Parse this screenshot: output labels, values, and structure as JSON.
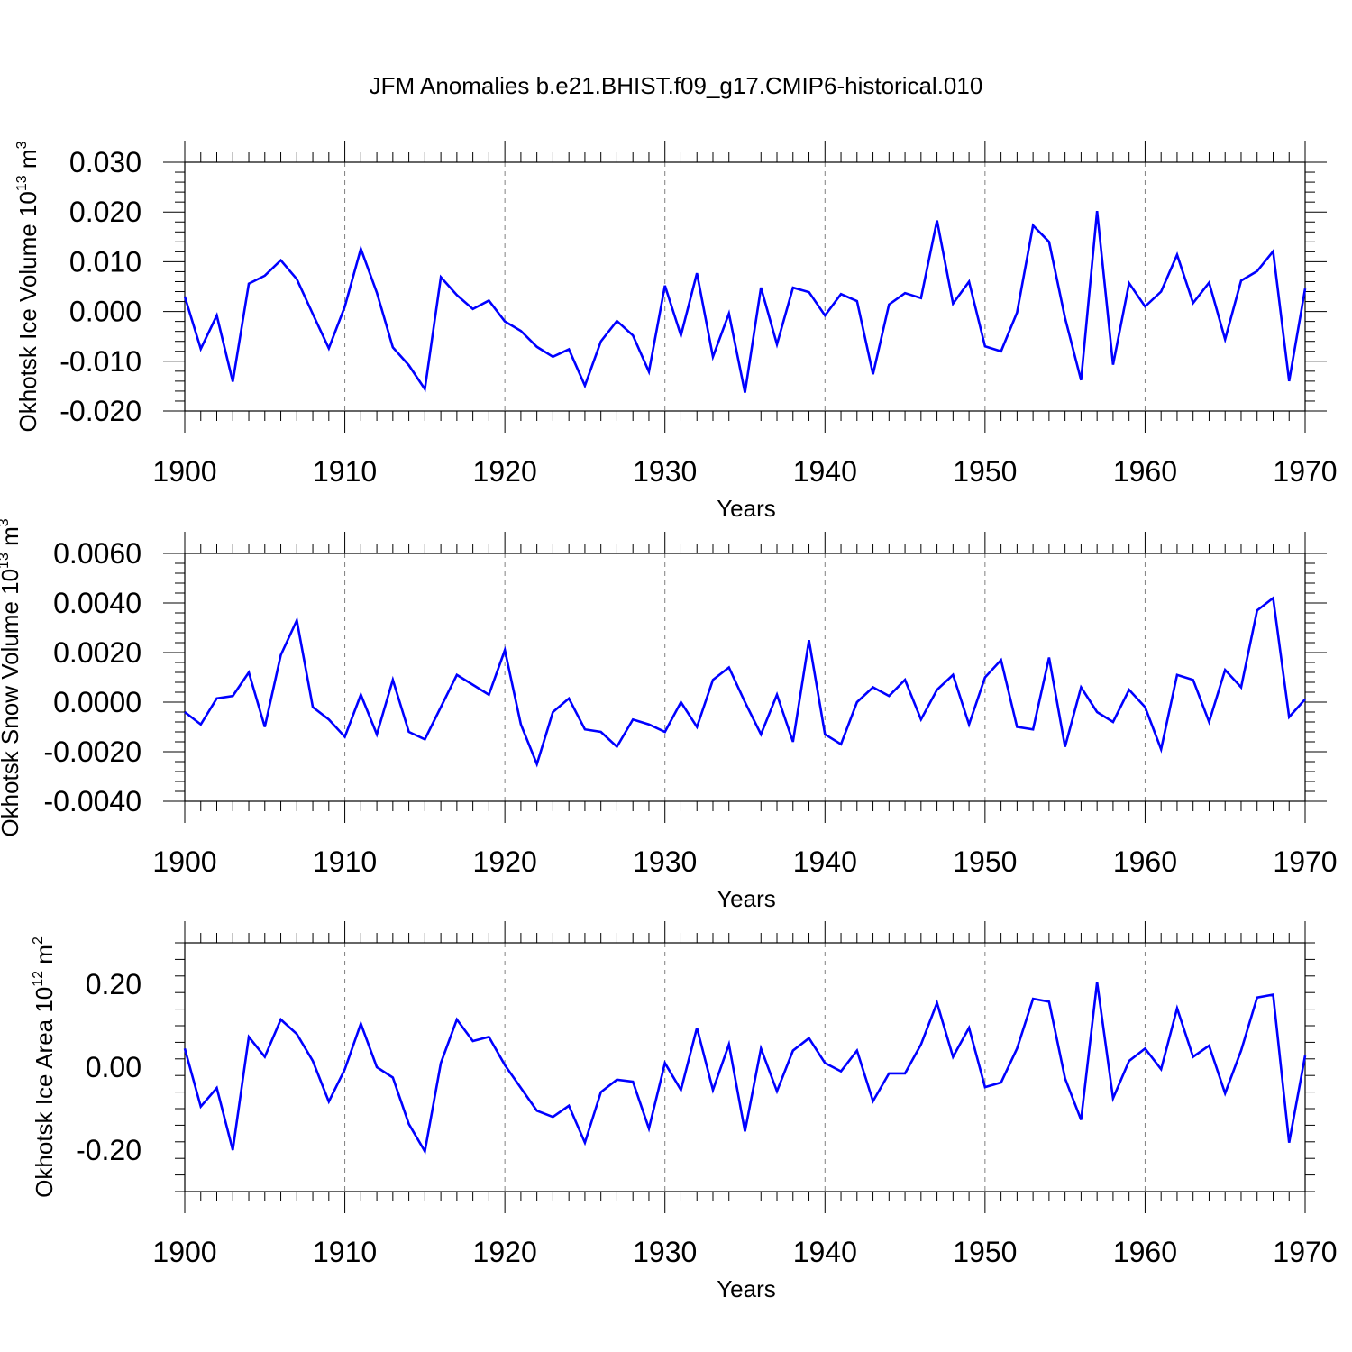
{
  "title": "JFM Anomalies b.e21.BHIST.f09_g17.CMIP6-historical.010",
  "colors": {
    "line": "#0000ff",
    "axis": "#000000",
    "grid": "#808080"
  },
  "chart_data": [
    {
      "type": "line",
      "ylabel_main": "Okhotsk Ice Volume 10",
      "ylabel_exp": "13",
      "ylabel_unit": " m",
      "ylabel_unit_exp": "3",
      "xlabel": "Years",
      "xlim": [
        1900,
        1970
      ],
      "ylim": [
        -0.02,
        0.03
      ],
      "yticks": [
        -0.02,
        -0.01,
        0.0,
        0.01,
        0.02,
        0.03
      ],
      "yticklabels": [
        "-0.020",
        "-0.010",
        "0.000",
        "0.010",
        "0.020",
        "0.030"
      ],
      "xticks": [
        1900,
        1910,
        1920,
        1930,
        1940,
        1950,
        1960,
        1970
      ],
      "xticklabels": [
        "1900",
        "1910",
        "1920",
        "1930",
        "1940",
        "1950",
        "1960",
        "1970"
      ],
      "x_start": 1900,
      "values": [
        0.003,
        -0.0075,
        -0.0008,
        -0.0141,
        0.0056,
        0.0072,
        0.0103,
        0.0065,
        -0.0005,
        -0.0074,
        0.001,
        0.0126,
        0.0038,
        -0.0072,
        -0.0108,
        -0.0156,
        0.0069,
        0.0033,
        0.0005,
        0.0022,
        -0.002,
        -0.0039,
        -0.0071,
        -0.0091,
        -0.0076,
        -0.0149,
        -0.006,
        -0.0019,
        -0.0048,
        -0.0121,
        0.0052,
        -0.0048,
        0.0077,
        -0.0091,
        -0.0004,
        -0.0163,
        0.0048,
        -0.0066,
        0.0048,
        0.0039,
        -0.0008,
        0.0035,
        0.0021,
        -0.0126,
        0.0014,
        0.0037,
        0.0027,
        0.0183,
        0.0016,
        0.006,
        -0.007,
        -0.008,
        -0.0002,
        0.0173,
        0.014,
        -0.0013,
        -0.0138,
        0.0202,
        -0.0107,
        0.0057,
        0.001,
        0.004,
        0.0114,
        0.0017,
        0.0058,
        -0.0056,
        0.0062,
        0.0081,
        0.0121,
        -0.014,
        0.0046
      ]
    },
    {
      "type": "line",
      "ylabel_main": "Okhotsk Snow Volume 10",
      "ylabel_exp": "13",
      "ylabel_unit": " m",
      "ylabel_unit_exp": "3",
      "xlabel": "Years",
      "xlim": [
        1900,
        1970
      ],
      "ylim": [
        -0.004,
        0.006
      ],
      "yticks": [
        -0.004,
        -0.002,
        0.0,
        0.002,
        0.004,
        0.006
      ],
      "yticklabels": [
        "-0.0040",
        "-0.0020",
        "0.0000",
        "0.0020",
        "0.0040",
        "0.0060"
      ],
      "xticks": [
        1900,
        1910,
        1920,
        1930,
        1940,
        1950,
        1960,
        1970
      ],
      "xticklabels": [
        "1900",
        "1910",
        "1920",
        "1930",
        "1940",
        "1950",
        "1960",
        "1970"
      ],
      "x_start": 1900,
      "values": [
        -0.0004,
        -0.0009,
        0.00015,
        0.00025,
        0.0012,
        -0.001,
        0.0019,
        0.0033,
        -0.0002,
        -0.0007,
        -0.0014,
        0.0003,
        -0.0013,
        0.0009,
        -0.0012,
        -0.0015,
        -0.0002,
        0.0011,
        0.0007,
        0.0003,
        0.0021,
        -0.0009,
        -0.0025,
        -0.0004,
        0.00015,
        -0.0011,
        -0.0012,
        -0.0018,
        -0.0007,
        -0.0009,
        -0.0012,
        0.0,
        -0.001,
        0.0009,
        0.0014,
        0.0,
        -0.0013,
        0.0003,
        -0.0016,
        0.0025,
        -0.0013,
        -0.0017,
        0.0,
        0.0006,
        0.00025,
        0.0009,
        -0.0007,
        0.0005,
        0.0011,
        -0.0009,
        0.001,
        0.0017,
        -0.001,
        -0.0011,
        0.0018,
        -0.0018,
        0.0006,
        -0.0004,
        -0.0008,
        0.0005,
        -0.0002,
        -0.0019,
        0.0011,
        0.0009,
        -0.0008,
        0.0013,
        0.0006,
        0.0037,
        0.0042,
        -0.0006,
        0.00012
      ]
    },
    {
      "type": "line",
      "ylabel_main": "Okhotsk Ice Area 10",
      "ylabel_exp": "12",
      "ylabel_unit": " m",
      "ylabel_unit_exp": "2",
      "xlabel": "Years",
      "xlim": [
        1900,
        1970
      ],
      "ylim": [
        -0.3,
        0.3
      ],
      "yticks": [
        -0.2,
        0.0,
        0.2
      ],
      "yticklabels": [
        "-0.20",
        "0.00",
        "0.20"
      ],
      "xticks": [
        1900,
        1910,
        1920,
        1930,
        1940,
        1950,
        1960,
        1970
      ],
      "xticklabels": [
        "1900",
        "1910",
        "1920",
        "1930",
        "1940",
        "1950",
        "1960",
        "1970"
      ],
      "x_start": 1900,
      "values": [
        0.045,
        -0.095,
        -0.05,
        -0.2,
        0.073,
        0.025,
        0.115,
        0.08,
        0.015,
        -0.083,
        -0.005,
        0.105,
        0.0,
        -0.025,
        -0.137,
        -0.203,
        0.01,
        0.115,
        0.063,
        0.073,
        0.005,
        -0.05,
        -0.105,
        -0.12,
        -0.093,
        -0.182,
        -0.06,
        -0.03,
        -0.035,
        -0.148,
        0.01,
        -0.055,
        0.095,
        -0.055,
        0.055,
        -0.155,
        0.045,
        -0.058,
        0.04,
        0.07,
        0.01,
        -0.01,
        0.04,
        -0.082,
        -0.015,
        -0.015,
        0.055,
        0.155,
        0.025,
        0.095,
        -0.048,
        -0.037,
        0.045,
        0.165,
        0.158,
        -0.027,
        -0.127,
        0.205,
        -0.075,
        0.015,
        0.045,
        -0.005,
        0.142,
        0.025,
        0.052,
        -0.063,
        0.04,
        0.168,
        0.175,
        -0.182,
        0.028
      ]
    }
  ]
}
